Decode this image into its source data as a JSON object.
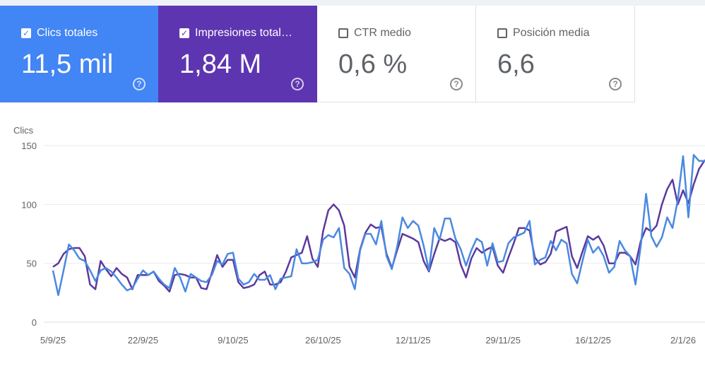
{
  "metrics": [
    {
      "label": "Clics totales",
      "value": "11,5 mil",
      "checked": true,
      "color": "#4285f4"
    },
    {
      "label": "Impresiones total…",
      "value": "1,84 M",
      "checked": true,
      "color": "#5e35b1"
    },
    {
      "label": "CTR medio",
      "value": "0,6 %",
      "checked": false
    },
    {
      "label": "Posición media",
      "value": "6,6",
      "checked": false
    }
  ],
  "help_glyph": "?",
  "check_glyph": "✓",
  "chart_data": {
    "type": "line",
    "ylabel": "Clics",
    "ylim": [
      0,
      150
    ],
    "yticks": [
      "0",
      "50",
      "100",
      "150"
    ],
    "xticks": [
      "5/9/25",
      "22/9/25",
      "9/10/25",
      "26/10/25",
      "12/11/25",
      "29/11/25",
      "16/12/25",
      "2/1/26"
    ],
    "grid": true,
    "x": [
      "5/9/25",
      "6/9/25",
      "7/9/25",
      "8/9/25",
      "9/9/25",
      "10/9/25",
      "11/9/25",
      "12/9/25",
      "13/9/25",
      "14/9/25",
      "15/9/25",
      "16/9/25",
      "17/9/25",
      "18/9/25",
      "19/9/25",
      "20/9/25",
      "21/9/25",
      "22/9/25",
      "23/9/25",
      "24/9/25",
      "25/9/25",
      "26/9/25",
      "27/9/25",
      "28/9/25",
      "29/9/25",
      "30/9/25",
      "1/10/25",
      "2/10/25",
      "3/10/25",
      "4/10/25",
      "5/10/25",
      "6/10/25",
      "7/10/25",
      "8/10/25",
      "9/10/25",
      "10/10/25",
      "11/10/25",
      "12/10/25",
      "13/10/25",
      "14/10/25",
      "15/10/25",
      "16/10/25",
      "17/10/25",
      "18/10/25",
      "19/10/25",
      "20/10/25",
      "21/10/25",
      "22/10/25",
      "23/10/25",
      "24/10/25",
      "25/10/25",
      "26/10/25",
      "27/10/25",
      "28/10/25",
      "29/10/25",
      "30/10/25",
      "31/10/25",
      "1/11/25",
      "2/11/25",
      "3/11/25",
      "4/11/25",
      "5/11/25",
      "6/11/25",
      "7/11/25",
      "8/11/25",
      "9/11/25",
      "10/11/25",
      "11/11/25",
      "12/11/25",
      "13/11/25",
      "14/11/25",
      "15/11/25",
      "16/11/25",
      "17/11/25",
      "18/11/25",
      "19/11/25",
      "20/11/25",
      "21/11/25",
      "22/11/25",
      "23/11/25",
      "24/11/25",
      "25/11/25",
      "26/11/25",
      "27/11/25",
      "28/11/25",
      "29/11/25",
      "30/11/25",
      "1/12/25",
      "2/12/25",
      "3/12/25",
      "4/12/25",
      "5/12/25",
      "6/12/25",
      "7/12/25",
      "8/12/25",
      "9/12/25",
      "10/12/25",
      "11/12/25",
      "12/12/25",
      "13/12/25",
      "14/12/25",
      "15/12/25",
      "16/12/25",
      "17/12/25",
      "18/12/25",
      "19/12/25",
      "20/12/25",
      "21/12/25",
      "22/12/25",
      "23/12/25",
      "24/12/25",
      "25/12/25",
      "26/12/25",
      "27/12/25",
      "28/12/25",
      "29/12/25",
      "30/12/25",
      "31/12/25",
      "1/1/26",
      "2/1/26",
      "3/1/26",
      "4/1/26",
      "5/1/26",
      "6/1/26",
      "7/1/26"
    ],
    "series": [
      {
        "name": "Clics totales",
        "color": "#4a89e0",
        "values": [
          44,
          23,
          44,
          66,
          61,
          54,
          52,
          44,
          35,
          44,
          46,
          43,
          38,
          32,
          27,
          29,
          37,
          44,
          40,
          43,
          37,
          32,
          29,
          46,
          38,
          26,
          41,
          38,
          35,
          34,
          40,
          52,
          49,
          58,
          59,
          37,
          32,
          34,
          41,
          36,
          36,
          40,
          28,
          37,
          38,
          39,
          62,
          50,
          50,
          51,
          53,
          70,
          74,
          72,
          80,
          46,
          41,
          28,
          61,
          75,
          75,
          66,
          86,
          56,
          45,
          64,
          89,
          80,
          86,
          82,
          65,
          44,
          80,
          70,
          88,
          88,
          71,
          62,
          48,
          61,
          71,
          68,
          48,
          67,
          51,
          52,
          67,
          72,
          74,
          76,
          86,
          49,
          53,
          55,
          69,
          61,
          70,
          67,
          41,
          33,
          52,
          70,
          59,
          64,
          56,
          42,
          47,
          69,
          61,
          56,
          32,
          65,
          109,
          73,
          64,
          72,
          89,
          80,
          104,
          141,
          89,
          142,
          137,
          137,
          137
        ]
      },
      {
        "name": "Impresiones total…",
        "color": "#5b3a9e",
        "values": [
          47,
          50,
          58,
          62,
          63,
          63,
          56,
          32,
          28,
          52,
          45,
          39,
          46,
          41,
          38,
          28,
          40,
          40,
          40,
          43,
          35,
          31,
          26,
          40,
          41,
          40,
          38,
          38,
          29,
          28,
          42,
          57,
          47,
          53,
          53,
          34,
          29,
          30,
          32,
          40,
          43,
          32,
          32,
          34,
          43,
          55,
          57,
          59,
          73,
          54,
          47,
          77,
          95,
          100,
          95,
          82,
          47,
          38,
          62,
          76,
          83,
          80,
          81,
          58,
          46,
          61,
          75,
          73,
          71,
          68,
          52,
          43,
          58,
          71,
          69,
          71,
          68,
          49,
          38,
          54,
          63,
          59,
          62,
          64,
          48,
          42,
          55,
          67,
          80,
          80,
          78,
          55,
          49,
          51,
          58,
          77,
          79,
          81,
          56,
          46,
          60,
          73,
          70,
          73,
          65,
          50,
          50,
          59,
          59,
          56,
          49,
          69,
          80,
          77,
          82,
          100,
          113,
          121,
          100,
          112,
          101,
          117,
          130,
          137,
          140
        ]
      }
    ]
  }
}
